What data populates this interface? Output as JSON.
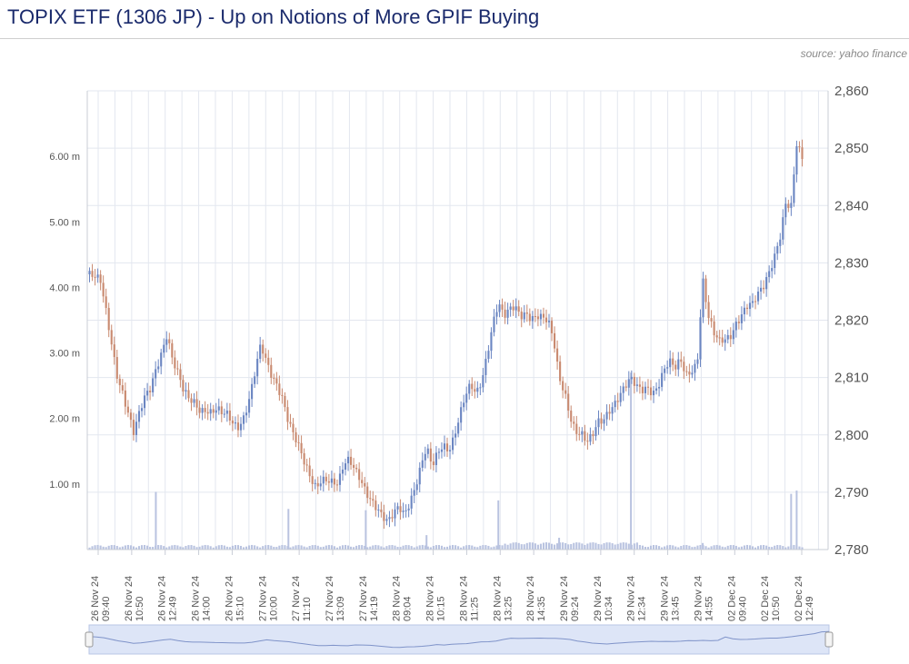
{
  "header": {
    "title": "TOPIX ETF (1306 JP) - Up on Notions of More GPIF Buying",
    "source": "source: yahoo finance"
  },
  "colors": {
    "up": "#6b86c2",
    "down": "#c98a70",
    "grid": "#e3e7ef",
    "volume": "#b9c3e0",
    "navigator": "#dde5f7"
  },
  "chart_data": {
    "type": "candlestick",
    "title": "TOPIX ETF (1306 JP) - Up on Notions of More GPIF Buying",
    "price_axis": {
      "side": "right",
      "range": [
        2780,
        2860
      ],
      "ticks": [
        "2,780",
        "2,790",
        "2,800",
        "2,810",
        "2,820",
        "2,830",
        "2,840",
        "2,850",
        "2,860"
      ]
    },
    "volume_axis": {
      "side": "left",
      "range": [
        0,
        7000000
      ],
      "ticks": [
        "1.00 m",
        "2.00 m",
        "3.00 m",
        "4.00 m",
        "5.00 m",
        "6.00 m"
      ]
    },
    "x_ticks": [
      {
        "date": "26 Nov 24",
        "time": "09:40"
      },
      {
        "date": "26 Nov 24",
        "time": "10:50"
      },
      {
        "date": "26 Nov 24",
        "time": "12:49"
      },
      {
        "date": "26 Nov 24",
        "time": "14:00"
      },
      {
        "date": "26 Nov 24",
        "time": "15:10"
      },
      {
        "date": "27 Nov 24",
        "time": "10:00"
      },
      {
        "date": "27 Nov 24",
        "time": "11:10"
      },
      {
        "date": "27 Nov 24",
        "time": "13:09"
      },
      {
        "date": "27 Nov 24",
        "time": "14:19"
      },
      {
        "date": "28 Nov 24",
        "time": "09:04"
      },
      {
        "date": "28 Nov 24",
        "time": "10:15"
      },
      {
        "date": "28 Nov 24",
        "time": "11:25"
      },
      {
        "date": "28 Nov 24",
        "time": "13:25"
      },
      {
        "date": "28 Nov 24",
        "time": "14:35"
      },
      {
        "date": "29 Nov 24",
        "time": "09:24"
      },
      {
        "date": "29 Nov 24",
        "time": "10:34"
      },
      {
        "date": "29 Nov 24",
        "time": "12:34"
      },
      {
        "date": "29 Nov 24",
        "time": "13:45"
      },
      {
        "date": "29 Nov 24",
        "time": "14:55"
      },
      {
        "date": "02 Dec 24",
        "time": "09:40"
      },
      {
        "date": "02 Dec 24",
        "time": "10:50"
      },
      {
        "date": "02 Dec 24",
        "time": "12:49"
      }
    ],
    "price_path": [
      [
        0,
        2828
      ],
      [
        2,
        2826
      ],
      [
        3,
        2821
      ],
      [
        4,
        2816
      ],
      [
        5,
        2811
      ],
      [
        6,
        2808
      ],
      [
        7,
        2804
      ],
      [
        8,
        2800
      ],
      [
        9,
        2803
      ],
      [
        10,
        2806
      ],
      [
        11,
        2808
      ],
      [
        12,
        2812
      ],
      [
        13,
        2815
      ],
      [
        14,
        2818
      ],
      [
        15,
        2813
      ],
      [
        16,
        2810
      ],
      [
        17,
        2807
      ],
      [
        18,
        2806
      ],
      [
        19,
        2806
      ],
      [
        20,
        2805
      ],
      [
        21,
        2805
      ],
      [
        22,
        2804
      ],
      [
        23,
        2804
      ],
      [
        24,
        2803
      ],
      [
        25,
        2803
      ],
      [
        26,
        2802
      ],
      [
        27,
        2802
      ],
      [
        28,
        2804
      ],
      [
        29,
        2807
      ],
      [
        30,
        2811
      ],
      [
        31,
        2815
      ],
      [
        32,
        2812
      ],
      [
        33,
        2810
      ],
      [
        34,
        2809
      ],
      [
        35,
        2807
      ],
      [
        36,
        2803
      ],
      [
        37,
        2800
      ],
      [
        38,
        2797
      ],
      [
        39,
        2794
      ],
      [
        40,
        2792
      ],
      [
        41,
        2791
      ],
      [
        42,
        2793
      ],
      [
        43,
        2793
      ],
      [
        44,
        2792
      ],
      [
        45,
        2791
      ],
      [
        46,
        2794
      ],
      [
        47,
        2795
      ],
      [
        48,
        2794
      ],
      [
        49,
        2793
      ],
      [
        50,
        2791
      ],
      [
        51,
        2789
      ],
      [
        52,
        2787
      ],
      [
        53,
        2785
      ],
      [
        54,
        2784
      ],
      [
        55,
        2786
      ],
      [
        56,
        2788
      ],
      [
        57,
        2787
      ],
      [
        58,
        2789
      ],
      [
        59,
        2791
      ],
      [
        60,
        2794
      ],
      [
        61,
        2797
      ],
      [
        62,
        2794
      ],
      [
        63,
        2797
      ],
      [
        64,
        2799
      ],
      [
        65,
        2798
      ],
      [
        66,
        2800
      ],
      [
        67,
        2803
      ],
      [
        68,
        2806
      ],
      [
        69,
        2808
      ],
      [
        70,
        2807
      ],
      [
        71,
        2810
      ],
      [
        72,
        2815
      ],
      [
        73,
        2820
      ],
      [
        74,
        2823
      ],
      [
        75,
        2820
      ],
      [
        76,
        2821
      ],
      [
        77,
        2822
      ],
      [
        78,
        2821
      ],
      [
        79,
        2822
      ],
      [
        80,
        2821
      ],
      [
        81,
        2821
      ],
      [
        82,
        2820
      ],
      [
        83,
        2819
      ],
      [
        84,
        2816
      ],
      [
        85,
        2810
      ],
      [
        86,
        2808
      ],
      [
        87,
        2804
      ],
      [
        88,
        2801
      ],
      [
        89,
        2800
      ],
      [
        90,
        2798
      ],
      [
        91,
        2799
      ],
      [
        92,
        2802
      ],
      [
        93,
        2803
      ],
      [
        94,
        2805
      ],
      [
        95,
        2806
      ],
      [
        96,
        2807
      ],
      [
        97,
        2808
      ],
      [
        98,
        2809
      ],
      [
        99,
        2808
      ],
      [
        100,
        2808
      ],
      [
        101,
        2809
      ],
      [
        102,
        2808
      ],
      [
        103,
        2809
      ],
      [
        104,
        2811
      ],
      [
        105,
        2812
      ],
      [
        106,
        2811
      ],
      [
        107,
        2813
      ],
      [
        108,
        2811
      ],
      [
        109,
        2812
      ],
      [
        110,
        2813
      ],
      [
        111,
        2827
      ],
      [
        112,
        2820
      ],
      [
        113,
        2817
      ],
      [
        114,
        2816
      ],
      [
        115,
        2817
      ],
      [
        116,
        2818
      ],
      [
        117,
        2820
      ],
      [
        118,
        2821
      ],
      [
        119,
        2822
      ],
      [
        120,
        2822
      ],
      [
        121,
        2824
      ],
      [
        122,
        2826
      ],
      [
        123,
        2829
      ],
      [
        124,
        2832
      ],
      [
        125,
        2835
      ],
      [
        126,
        2840
      ],
      [
        127,
        2839
      ],
      [
        128,
        2850
      ],
      [
        129,
        2848
      ]
    ],
    "volume_spikes": [
      {
        "index": 12,
        "value": 880000
      },
      {
        "index": 36,
        "value": 620000
      },
      {
        "index": 50,
        "value": 600000
      },
      {
        "index": 61,
        "value": 220000
      },
      {
        "index": 74,
        "value": 750000
      },
      {
        "index": 85,
        "value": 180000
      },
      {
        "index": 98,
        "value": 2700000
      },
      {
        "index": 111,
        "value": 100000
      },
      {
        "index": 127,
        "value": 850000
      },
      {
        "index": 128,
        "value": 900000
      }
    ]
  },
  "navigator": {
    "label": "range-navigator"
  }
}
